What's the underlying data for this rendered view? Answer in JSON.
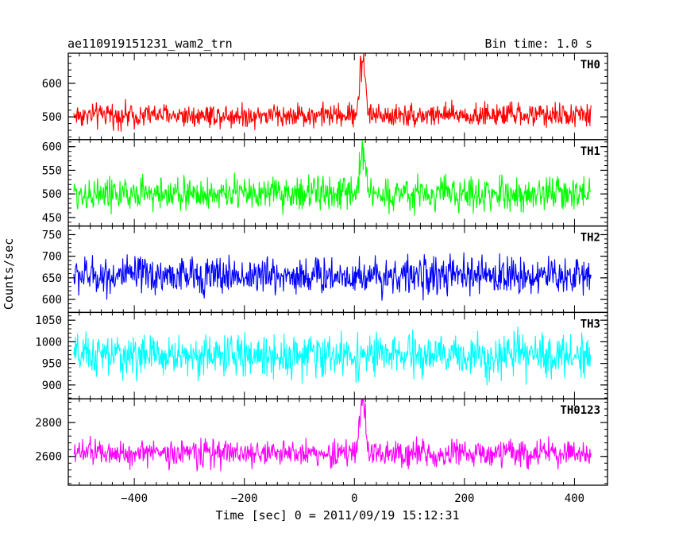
{
  "title_left": "ae110919151231_wam2_trn",
  "title_right": "Bin time: 1.0 s",
  "xlabel": "Time [sec] 0 = 2011/09/19 15:12:31",
  "ylabel": "Counts/sec",
  "chart_data": {
    "type": "line",
    "x_range": [
      -510,
      430
    ],
    "xlim": [
      -520,
      460
    ],
    "bin_time_s": 1.0,
    "x_ticks": [
      -400,
      -200,
      0,
      200,
      400
    ],
    "x_tick_labels": [
      "−400",
      "−200",
      "0",
      "200",
      "400"
    ],
    "panels": [
      {
        "name": "TH0",
        "color": "#ff0000",
        "ylim": [
          432,
          690
        ],
        "y_ticks": [
          500,
          600
        ],
        "y_tick_labels": [
          "500",
          "600"
        ],
        "baseline": 505,
        "noise": 22,
        "min_clip": 432,
        "peak": {
          "x": 15,
          "height": 175,
          "width": 7
        }
      },
      {
        "name": "TH1",
        "color": "#00ff00",
        "ylim": [
          432,
          615
        ],
        "y_ticks": [
          450,
          500,
          550,
          600
        ],
        "y_tick_labels": [
          "450",
          "500",
          "550",
          "600"
        ],
        "baseline": 500,
        "noise": 22,
        "min_clip": 432,
        "peak": {
          "x": 15,
          "height": 90,
          "width": 8
        }
      },
      {
        "name": "TH2",
        "color": "#0000ff",
        "ylim": [
          570,
          770
        ],
        "y_ticks": [
          600,
          650,
          700,
          750
        ],
        "y_tick_labels": [
          "600",
          "650",
          "700",
          "750"
        ],
        "baseline": 655,
        "noise": 27,
        "min_clip": 575
      },
      {
        "name": "TH3",
        "color": "#00ffff",
        "ylim": [
          868,
          1068
        ],
        "y_ticks": [
          900,
          950,
          1000,
          1050
        ],
        "y_tick_labels": [
          "900",
          "950",
          "1000",
          "1050"
        ],
        "baseline": 968,
        "noise": 30,
        "min_clip": 870
      },
      {
        "name": "TH0123",
        "color": "#ff00ff",
        "ylim": [
          2430,
          2940
        ],
        "y_ticks": [
          2600,
          2800
        ],
        "y_tick_labels": [
          "2600",
          "2800"
        ],
        "baseline": 2620,
        "noise": 50,
        "min_clip": 2440,
        "peak": {
          "x": 15,
          "height": 310,
          "width": 7
        }
      }
    ]
  }
}
